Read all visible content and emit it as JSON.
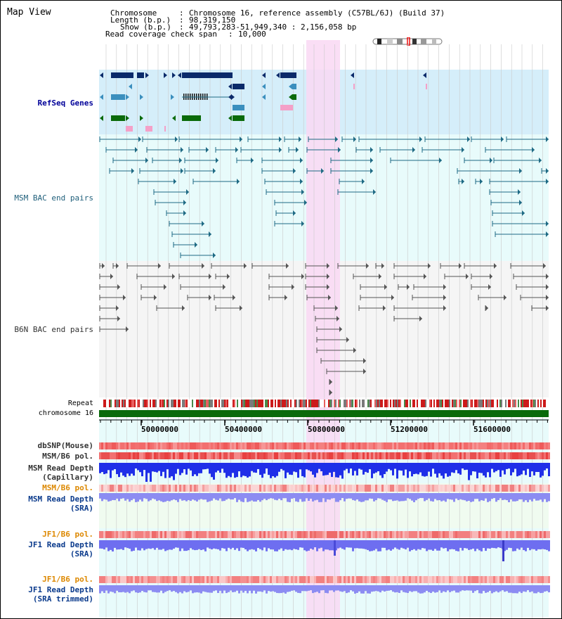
{
  "app_title": "Map View",
  "header": {
    "chromosome_key": "Chromosome",
    "chromosome_value": "Chromosome 16, reference assembly (C57BL/6J) (Build 37)",
    "length_key": "Length (b.p.)",
    "length_value": "98,319,150",
    "show_key": "Show (b.p.)",
    "show_value": "49,793,283-51,949,340 : 2,156,058 bp",
    "coverage_key": "Read coverage check span",
    "coverage_value": "10,000"
  },
  "tracks": {
    "refseq": "RefSeq Genes",
    "msm_bac": "MSM BAC end pairs",
    "b6n_bac": "B6N BAC end pairs",
    "repeat": "Repeat",
    "chromosome": "chromosome 16",
    "dbsnp": "dbSNP(Mouse)",
    "msm_b6_pol_1": "MSM/B6 pol.",
    "msm_read_depth_cap_1": "MSM Read Depth",
    "msm_read_depth_cap_2": "(Capillary)",
    "msm_b6_pol_2": "MSM/B6 pol.",
    "msm_read_depth_sra_1": "MSM Read Depth",
    "msm_read_depth_sra_2": "(SRA)",
    "jf1_b6_pol_1": "JF1/B6 pol.",
    "jf1_read_depth_sra_1": "JF1 Read Depth",
    "jf1_read_depth_sra_2": "(SRA)",
    "jf1_b6_pol_2": "JF1/B6 pol.",
    "jf1_read_depth_trim_1": "JF1 Read Depth",
    "jf1_read_depth_trim_2": "(SRA trimmed)"
  },
  "axis": {
    "ticks": [
      "50000000",
      "50400000",
      "50800000",
      "51200000",
      "51600000"
    ]
  },
  "colors": {
    "refseq_bg": "#d5eefa",
    "bac_bg": "#e8fbfb",
    "b6n_bg": "#f5f5f5",
    "highlight": "#f9d8f3",
    "gene_navy": "#0b2a6a",
    "gene_teal": "#3b8fbe",
    "gene_green": "#0a6a0a",
    "gene_pink": "#f4a0c8",
    "bac_line": "#1e6a84",
    "b6n_line": "#555555",
    "chrom_bar": "#0a6a0a",
    "label_navy": "#000099",
    "label_orange": "#dd8800",
    "label_blue": "#0a3a8c"
  }
}
